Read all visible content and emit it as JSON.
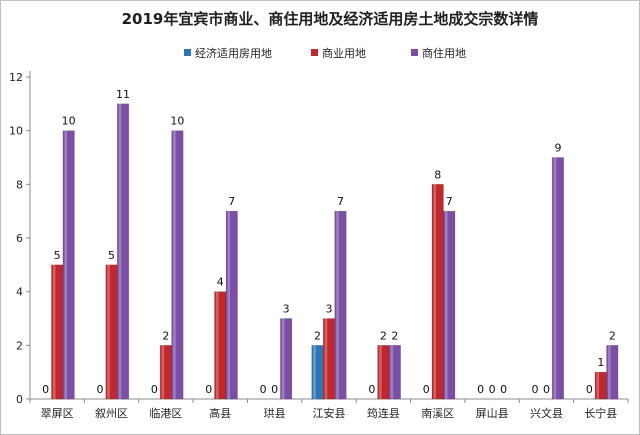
{
  "chart_data": {
    "type": "bar",
    "title": "2019年宜宾市商业、商住用地及经济适用房土地成交宗数详情",
    "categories": [
      "翠屏区",
      "叙州区",
      "临港区",
      "高县",
      "珙县",
      "江安县",
      "筠连县",
      "南溪区",
      "屏山县",
      "兴文县",
      "长宁县"
    ],
    "series": [
      {
        "name": "经济适用房用地",
        "color": "#2e75b6",
        "values": [
          0,
          0,
          0,
          0,
          0,
          2,
          0,
          0,
          0,
          0,
          0
        ]
      },
      {
        "name": "商业用地",
        "color": "#c0282d",
        "values": [
          5,
          5,
          2,
          4,
          0,
          3,
          2,
          8,
          0,
          0,
          1
        ]
      },
      {
        "name": "商住用地",
        "color": "#7b4fa6",
        "values": [
          10,
          11,
          10,
          7,
          3,
          7,
          2,
          7,
          0,
          9,
          2
        ]
      }
    ],
    "ylim": [
      0,
      12
    ],
    "yticks": [
      0,
      2,
      4,
      6,
      8,
      10,
      12
    ],
    "legend_position": "top",
    "grid": false
  }
}
